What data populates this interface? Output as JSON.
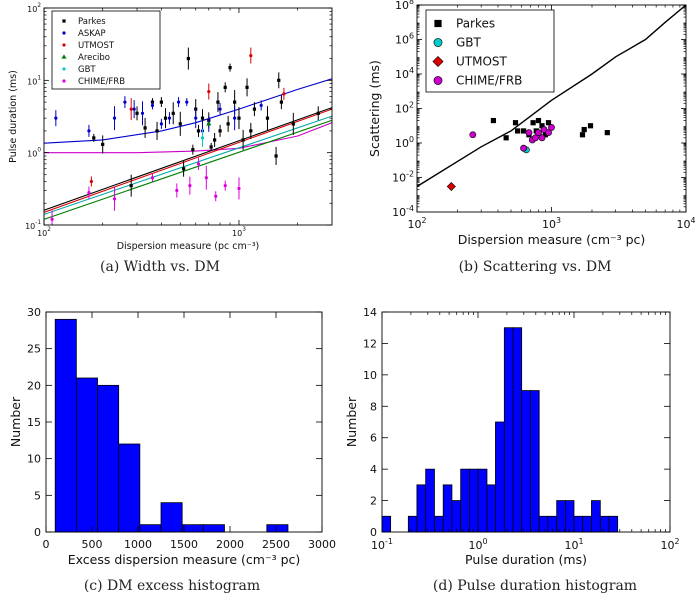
{
  "chart_data": [
    {
      "panel": "a",
      "type": "scatter",
      "caption": "(a) Width vs. DM",
      "xlabel": "Dispersion measure (pc cm⁻³)",
      "ylabel": "Pulse duration (ms)",
      "xscale": "log",
      "yscale": "log",
      "xlim": [
        100,
        3000
      ],
      "ylim": [
        0.1,
        100
      ],
      "xticks": [
        {
          "v": 100,
          "base": "10",
          "exp": "2"
        },
        {
          "v": 1000,
          "base": "10",
          "exp": "3"
        }
      ],
      "yticks": [
        {
          "v": 0.1,
          "base": "10",
          "exp": "-1"
        },
        {
          "v": 1,
          "base": "10",
          "exp": "0"
        },
        {
          "v": 10,
          "base": "10",
          "exp": "1"
        },
        {
          "v": 100,
          "base": "10",
          "exp": "2"
        }
      ],
      "legend_position": "top-left",
      "series": [
        {
          "name": "Parkes",
          "color": "#000000",
          "marker": "square",
          "points": [
            [
              180,
              1.6
            ],
            [
              200,
              1.3
            ],
            [
              280,
              0.35
            ],
            [
              300,
              3.5
            ],
            [
              330,
              2.2
            ],
            [
              360,
              5
            ],
            [
              380,
              2
            ],
            [
              400,
              5
            ],
            [
              420,
              3
            ],
            [
              460,
              3.5
            ],
            [
              500,
              2.5
            ],
            [
              520,
              0.6
            ],
            [
              550,
              20
            ],
            [
              580,
              1.1
            ],
            [
              600,
              4
            ],
            [
              620,
              2
            ],
            [
              650,
              3
            ],
            [
              700,
              2.8
            ],
            [
              720,
              1.2
            ],
            [
              750,
              1.5
            ],
            [
              780,
              5
            ],
            [
              800,
              2
            ],
            [
              850,
              8
            ],
            [
              880,
              2.5
            ],
            [
              900,
              15
            ],
            [
              950,
              5
            ],
            [
              1000,
              3
            ],
            [
              1050,
              1.5
            ],
            [
              1100,
              8
            ],
            [
              1150,
              2
            ],
            [
              1200,
              4
            ],
            [
              1400,
              3
            ],
            [
              1550,
              0.9
            ],
            [
              1600,
              10
            ],
            [
              1650,
              5
            ],
            [
              1900,
              2.5
            ],
            [
              2550,
              3.5
            ]
          ]
        },
        {
          "name": "ASKAP",
          "color": "#0000cc",
          "marker": "dot",
          "points": [
            [
              115,
              3
            ],
            [
              170,
              2
            ],
            [
              230,
              3
            ],
            [
              260,
              5
            ],
            [
              290,
              4
            ],
            [
              320,
              3.5
            ],
            [
              360,
              4.5
            ],
            [
              400,
              2.5
            ],
            [
              440,
              3
            ],
            [
              490,
              5
            ],
            [
              540,
              5
            ],
            [
              600,
              3
            ],
            [
              650,
              2
            ],
            [
              700,
              2.5
            ],
            [
              800,
              4
            ],
            [
              950,
              3
            ],
            [
              1300,
              4.5
            ]
          ]
        },
        {
          "name": "UTMOST",
          "color": "#dd0000",
          "marker": "dot",
          "points": [
            [
              175,
              0.4
            ],
            [
              280,
              4
            ],
            [
              700,
              7
            ],
            [
              1150,
              22
            ],
            [
              1700,
              6.5
            ]
          ]
        },
        {
          "name": "Arecibo",
          "color": "#008000",
          "marker": "triangle",
          "points": [
            [
              700,
              2.5
            ]
          ]
        },
        {
          "name": "GBT",
          "color": "#00cccc",
          "marker": "dot",
          "points": [
            [
              650,
              1.6
            ]
          ]
        },
        {
          "name": "CHIME/FRB",
          "color": "#dd00dd",
          "marker": "dot",
          "points": [
            [
              110,
              0.12
            ],
            [
              170,
              0.28
            ],
            [
              230,
              0.23
            ],
            [
              360,
              0.45
            ],
            [
              480,
              0.3
            ],
            [
              560,
              0.35
            ],
            [
              620,
              0.7
            ],
            [
              680,
              0.45
            ],
            [
              760,
              0.25
            ],
            [
              850,
              0.35
            ],
            [
              1000,
              0.32
            ]
          ]
        }
      ],
      "curves": [
        {
          "color": "#0000cc",
          "points": [
            [
              100,
              1.35
            ],
            [
              200,
              1.5
            ],
            [
              400,
              2
            ],
            [
              600,
              2.6
            ],
            [
              1000,
              4
            ],
            [
              2000,
              7.5
            ],
            [
              3000,
              10.5
            ]
          ]
        },
        {
          "color": "#cc00cc",
          "points": [
            [
              100,
              1.0
            ],
            [
              300,
              1.0
            ],
            [
              600,
              1.05
            ],
            [
              1000,
              1.15
            ],
            [
              2000,
              1.7
            ],
            [
              3000,
              2.6
            ]
          ]
        },
        {
          "color": "#000000",
          "points": [
            [
              100,
              0.16
            ],
            [
              3000,
              4.2
            ]
          ]
        },
        {
          "color": "#dd0000",
          "points": [
            [
              100,
              0.15
            ],
            [
              3000,
              4.0
            ]
          ]
        },
        {
          "color": "#00aaaa",
          "points": [
            [
              100,
              0.14
            ],
            [
              3000,
              3.2
            ]
          ]
        },
        {
          "color": "#008000",
          "points": [
            [
              100,
              0.12
            ],
            [
              3000,
              2.8
            ]
          ]
        }
      ]
    },
    {
      "panel": "b",
      "type": "scatter",
      "caption": "(b) Scattering vs. DM",
      "xlabel": "Dispersion measure (cm⁻³ pc)",
      "ylabel": "Scattering (ms)",
      "xscale": "log",
      "yscale": "log",
      "xlim": [
        100,
        10000
      ],
      "ylim": [
        0.0001,
        100000000
      ],
      "xticks": [
        {
          "v": 100,
          "base": "10",
          "exp": "2"
        },
        {
          "v": 1000,
          "base": "10",
          "exp": "3"
        },
        {
          "v": 10000,
          "base": "10",
          "exp": "4"
        }
      ],
      "yticks": [
        {
          "v": 0.0001,
          "base": "10",
          "exp": "-4"
        },
        {
          "v": 0.01,
          "base": "10",
          "exp": "-2"
        },
        {
          "v": 1,
          "base": "10",
          "exp": "0"
        },
        {
          "v": 100,
          "base": "10",
          "exp": "2"
        },
        {
          "v": 10000,
          "base": "10",
          "exp": "4"
        },
        {
          "v": 1000000,
          "base": "10",
          "exp": "6"
        },
        {
          "v": 100000000,
          "base": "10",
          "exp": "8"
        }
      ],
      "legend_position": "top-left",
      "series": [
        {
          "name": "Parkes",
          "color": "#000000",
          "marker": "square",
          "points": [
            [
              370,
              20
            ],
            [
              460,
              2
            ],
            [
              540,
              15
            ],
            [
              560,
              5
            ],
            [
              620,
              5
            ],
            [
              680,
              3
            ],
            [
              730,
              15
            ],
            [
              770,
              5
            ],
            [
              800,
              20
            ],
            [
              850,
              10
            ],
            [
              900,
              3
            ],
            [
              950,
              15
            ],
            [
              1700,
              3
            ],
            [
              1750,
              6
            ],
            [
              1950,
              10
            ],
            [
              2600,
              4
            ]
          ]
        },
        {
          "name": "GBT",
          "color": "#00cccc",
          "marker": "circle",
          "points": [
            [
              650,
              0.4
            ]
          ]
        },
        {
          "name": "UTMOST",
          "color": "#dd0000",
          "marker": "diamond",
          "points": [
            [
              180,
              0.003
            ]
          ]
        },
        {
          "name": "CHIME/FRB",
          "color": "#cc00cc",
          "marker": "circle",
          "points": [
            [
              260,
              3
            ],
            [
              620,
              0.5
            ],
            [
              680,
              4
            ],
            [
              720,
              1.5
            ],
            [
              760,
              2
            ],
            [
              800,
              4
            ],
            [
              850,
              2
            ],
            [
              880,
              6
            ],
            [
              950,
              4
            ],
            [
              1000,
              8
            ]
          ]
        }
      ],
      "curves": [
        {
          "color": "#000000",
          "points": [
            [
              100,
              0.003
            ],
            [
              300,
              0.6
            ],
            [
              500,
              5
            ],
            [
              1000,
              300
            ],
            [
              2000,
              10000
            ],
            [
              3000,
              100000
            ],
            [
              5000,
              1000000
            ],
            [
              7000,
              10000000
            ],
            [
              10000,
              100000000
            ]
          ]
        }
      ]
    },
    {
      "panel": "c",
      "type": "bar",
      "caption": "(c) DM excess histogram",
      "xlabel": "Excess dispersion measure (cm⁻³ pc)",
      "ylabel": "Number",
      "xlim": [
        0,
        3000
      ],
      "ylim": [
        0,
        30
      ],
      "xticks": [
        0,
        500,
        1000,
        1500,
        2000,
        2500,
        3000
      ],
      "yticks": [
        0,
        5,
        10,
        15,
        20,
        25,
        30
      ],
      "color": "#0000ff",
      "bins": [
        {
          "x0": 100,
          "x1": 330,
          "count": 29
        },
        {
          "x0": 330,
          "x1": 560,
          "count": 21
        },
        {
          "x0": 560,
          "x1": 790,
          "count": 20
        },
        {
          "x0": 790,
          "x1": 1020,
          "count": 12
        },
        {
          "x0": 1020,
          "x1": 1250,
          "count": 1
        },
        {
          "x0": 1250,
          "x1": 1480,
          "count": 4
        },
        {
          "x0": 1480,
          "x1": 1710,
          "count": 1
        },
        {
          "x0": 1710,
          "x1": 1940,
          "count": 1
        },
        {
          "x0": 1940,
          "x1": 2170,
          "count": 0
        },
        {
          "x0": 2170,
          "x1": 2400,
          "count": 0
        },
        {
          "x0": 2400,
          "x1": 2630,
          "count": 1
        }
      ]
    },
    {
      "panel": "d",
      "type": "bar",
      "caption": "(d) Pulse duration histogram",
      "xlabel": "Pulse duration (ms)",
      "ylabel": "Number",
      "xscale": "log",
      "xlim": [
        0.1,
        100
      ],
      "ylim": [
        0,
        14
      ],
      "xticks": [
        {
          "v": 0.1,
          "base": "10",
          "exp": "-1"
        },
        {
          "v": 1,
          "base": "10",
          "exp": "0"
        },
        {
          "v": 10,
          "base": "10",
          "exp": "1"
        },
        {
          "v": 100,
          "base": "10",
          "exp": "2"
        }
      ],
      "yticks": [
        0,
        2,
        4,
        6,
        8,
        10,
        12,
        14
      ],
      "color": "#0000ff",
      "bins": [
        {
          "x0": 0.1,
          "x1": 0.123,
          "count": 1
        },
        {
          "x0": 0.123,
          "x1": 0.152,
          "count": 0
        },
        {
          "x0": 0.152,
          "x1": 0.188,
          "count": 0
        },
        {
          "x0": 0.188,
          "x1": 0.231,
          "count": 1
        },
        {
          "x0": 0.231,
          "x1": 0.285,
          "count": 3
        },
        {
          "x0": 0.285,
          "x1": 0.352,
          "count": 4
        },
        {
          "x0": 0.352,
          "x1": 0.434,
          "count": 1
        },
        {
          "x0": 0.434,
          "x1": 0.535,
          "count": 3
        },
        {
          "x0": 0.535,
          "x1": 0.66,
          "count": 2
        },
        {
          "x0": 0.66,
          "x1": 0.814,
          "count": 4
        },
        {
          "x0": 0.814,
          "x1": 1.0,
          "count": 4
        },
        {
          "x0": 1.0,
          "x1": 1.24,
          "count": 4
        },
        {
          "x0": 1.24,
          "x1": 1.52,
          "count": 3
        },
        {
          "x0": 1.52,
          "x1": 1.88,
          "count": 7
        },
        {
          "x0": 1.88,
          "x1": 2.31,
          "count": 13
        },
        {
          "x0": 2.31,
          "x1": 2.85,
          "count": 13
        },
        {
          "x0": 2.85,
          "x1": 3.52,
          "count": 9
        },
        {
          "x0": 3.52,
          "x1": 4.34,
          "count": 9
        },
        {
          "x0": 4.34,
          "x1": 5.35,
          "count": 1
        },
        {
          "x0": 5.35,
          "x1": 6.6,
          "count": 1
        },
        {
          "x0": 6.6,
          "x1": 8.14,
          "count": 2
        },
        {
          "x0": 8.14,
          "x1": 10.0,
          "count": 2
        },
        {
          "x0": 10.0,
          "x1": 12.3,
          "count": 1
        },
        {
          "x0": 12.3,
          "x1": 15.2,
          "count": 1
        },
        {
          "x0": 15.2,
          "x1": 18.8,
          "count": 2
        },
        {
          "x0": 18.8,
          "x1": 23.1,
          "count": 1
        },
        {
          "x0": 23.1,
          "x1": 28.5,
          "count": 1
        }
      ]
    }
  ]
}
